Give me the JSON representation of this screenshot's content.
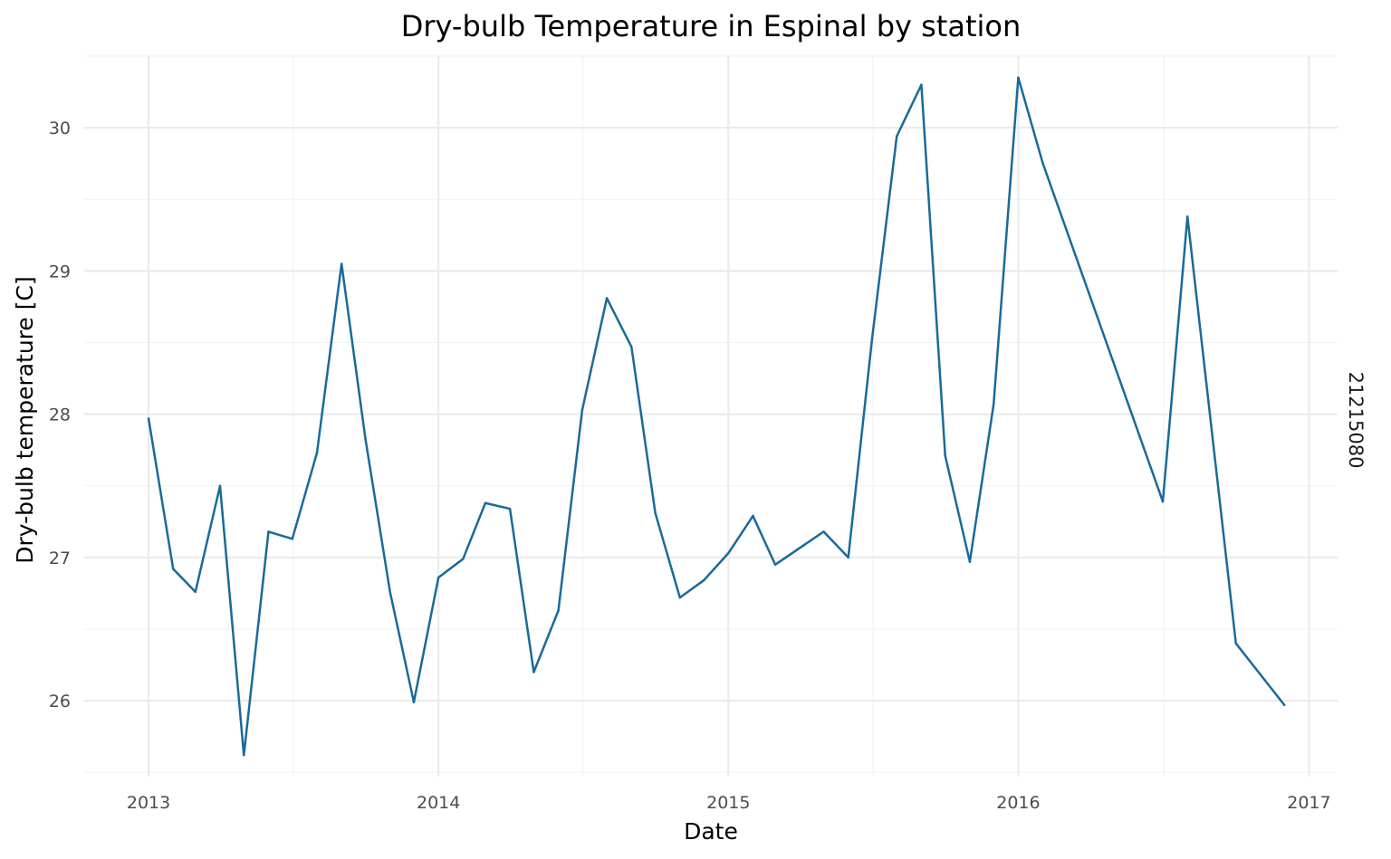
{
  "chart_data": {
    "type": "line",
    "title": "Dry-bulb Temperature in Espinal by station",
    "xlabel": "Date",
    "ylabel": "Dry-bulb temperature [C]",
    "facet_label": "21215080",
    "x_ticks": [
      "2013",
      "2014",
      "2015",
      "2016",
      "2017"
    ],
    "y_ticks": [
      26,
      27,
      28,
      29,
      30
    ],
    "xlim": [
      "2012-10-12",
      "2017-02-06"
    ],
    "ylim": [
      25.47,
      30.5
    ],
    "grid": true,
    "line_color": "#1a6a9a",
    "series": [
      {
        "x": [
          "2013-01-01",
          "2013-02-01",
          "2013-03-01",
          "2013-04-01",
          "2013-05-01",
          "2013-06-01",
          "2013-07-01",
          "2013-08-01",
          "2013-09-01",
          "2013-10-01",
          "2013-11-01",
          "2013-12-01",
          "2014-01-01",
          "2014-02-01",
          "2014-03-01",
          "2014-04-01",
          "2014-05-01",
          "2014-06-01",
          "2014-07-01",
          "2014-08-01",
          "2014-09-01",
          "2014-10-01",
          "2014-11-01",
          "2014-12-01",
          "2015-01-01",
          "2015-02-01",
          "2015-03-01",
          "2015-05-01",
          "2015-06-01",
          "2015-07-01",
          "2015-08-01",
          "2015-09-01",
          "2015-10-01",
          "2015-11-01",
          "2015-12-01",
          "2016-01-01",
          "2016-02-01",
          "2016-07-01",
          "2016-08-01",
          "2016-10-01",
          "2016-12-01"
        ],
        "values": [
          27.97,
          26.92,
          26.76,
          27.5,
          25.62,
          27.18,
          27.13,
          27.73,
          29.05,
          27.83,
          26.76,
          25.99,
          26.86,
          26.99,
          27.38,
          27.34,
          26.2,
          26.63,
          28.03,
          28.81,
          28.47,
          27.31,
          26.72,
          26.84,
          27.03,
          27.29,
          26.95,
          27.18,
          27.0,
          28.53,
          29.94,
          30.3,
          27.71,
          26.97,
          28.07,
          30.35,
          29.75,
          27.39,
          29.38,
          26.4,
          25.97
        ]
      }
    ]
  }
}
